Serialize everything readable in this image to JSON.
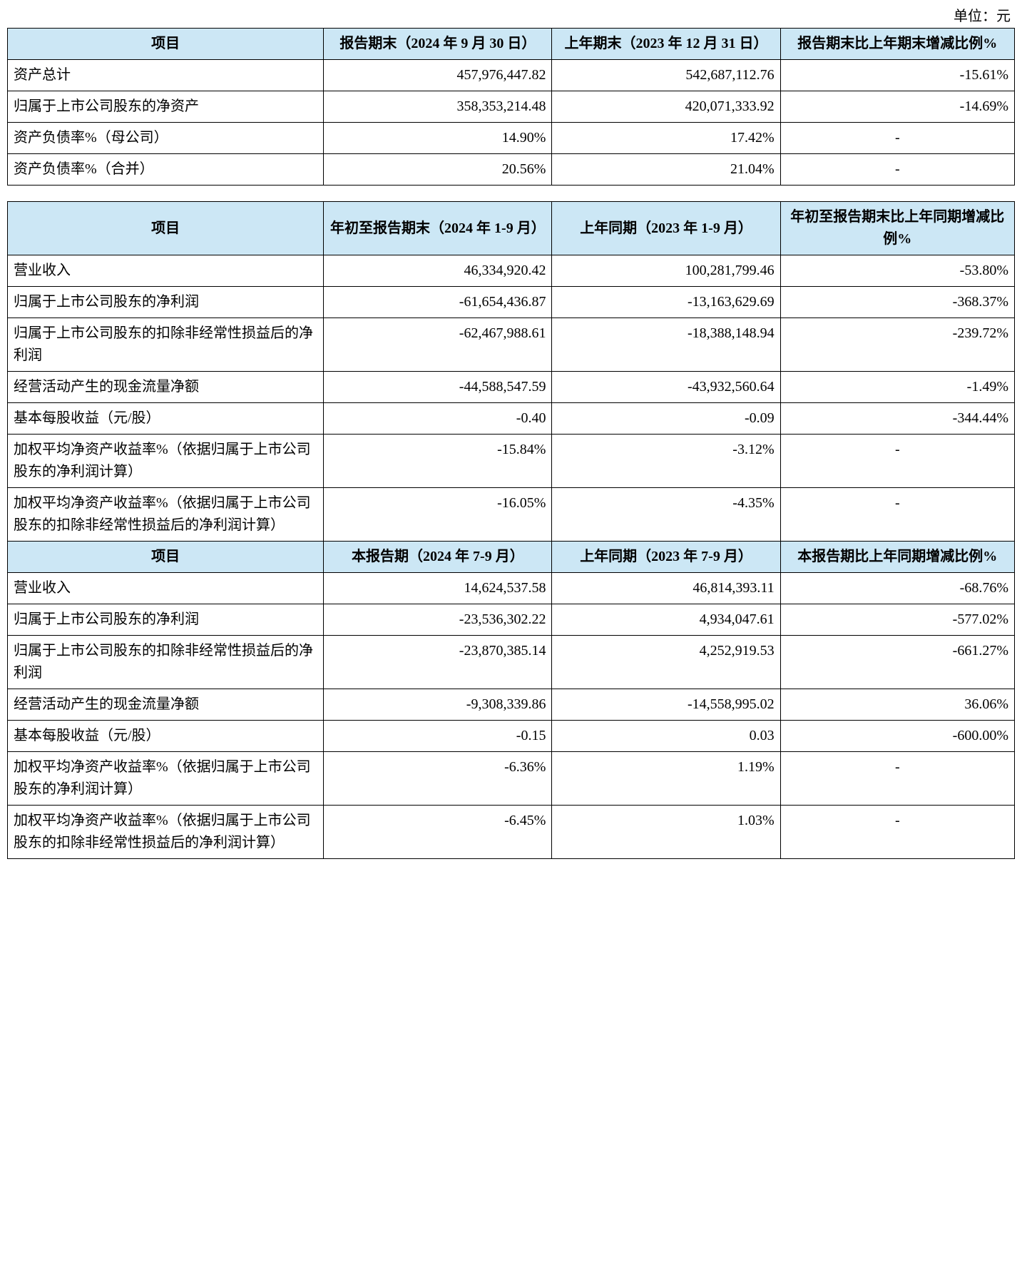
{
  "colors": {
    "header_bg": "#cce7f5",
    "border": "#000000",
    "text": "#000000",
    "page_bg": "#ffffff"
  },
  "font": {
    "family": "SimSun",
    "base_size_pt": 15
  },
  "unit_label": "单位：元",
  "table1": {
    "type": "table",
    "columns": [
      "项目",
      "报告期末（2024 年 9 月 30 日）",
      "上年期末（2023 年 12 月 31 日）",
      "报告期末比上年期末增减比例%"
    ],
    "rows": [
      {
        "label": "资产总计",
        "c1": "457,976,447.82",
        "c2": "542,687,112.76",
        "c3": "-15.61%"
      },
      {
        "label": "归属于上市公司股东的净资产",
        "c1": "358,353,214.48",
        "c2": "420,071,333.92",
        "c3": "-14.69%"
      },
      {
        "label": "资产负债率%（母公司）",
        "c1": "14.90%",
        "c2": "17.42%",
        "c3": "-"
      },
      {
        "label": "资产负债率%（合并）",
        "c1": "20.56%",
        "c2": "21.04%",
        "c3": "-"
      }
    ]
  },
  "table2": {
    "type": "table",
    "section_a": {
      "columns": [
        "项目",
        "年初至报告期末（2024 年 1-9 月）",
        "上年同期（2023 年 1-9 月）",
        "年初至报告期末比上年同期增减比例%"
      ],
      "rows": [
        {
          "label": "营业收入",
          "c1": "46,334,920.42",
          "c2": "100,281,799.46",
          "c3": "-53.80%"
        },
        {
          "label": "归属于上市公司股东的净利润",
          "c1": "-61,654,436.87",
          "c2": "-13,163,629.69",
          "c3": "-368.37%"
        },
        {
          "label": "归属于上市公司股东的扣除非经常性损益后的净利润",
          "c1": "-62,467,988.61",
          "c2": "-18,388,148.94",
          "c3": "-239.72%"
        },
        {
          "label": "经营活动产生的现金流量净额",
          "c1": "-44,588,547.59",
          "c2": "-43,932,560.64",
          "c3": "-1.49%"
        },
        {
          "label": "基本每股收益（元/股）",
          "c1": "-0.40",
          "c2": "-0.09",
          "c3": "-344.44%"
        },
        {
          "label": "加权平均净资产收益率%（依据归属于上市公司股东的净利润计算）",
          "c1": "-15.84%",
          "c2": "-3.12%",
          "c3": "-"
        },
        {
          "label": "加权平均净资产收益率%（依据归属于上市公司股东的扣除非经常性损益后的净利润计算）",
          "c1": "-16.05%",
          "c2": "-4.35%",
          "c3": "-"
        }
      ]
    },
    "section_b": {
      "columns": [
        "项目",
        "本报告期（2024 年 7-9 月）",
        "上年同期（2023 年 7-9 月）",
        "本报告期比上年同期增减比例%"
      ],
      "rows": [
        {
          "label": "营业收入",
          "c1": "14,624,537.58",
          "c2": "46,814,393.11",
          "c3": "-68.76%"
        },
        {
          "label": "归属于上市公司股东的净利润",
          "c1": "-23,536,302.22",
          "c2": "4,934,047.61",
          "c3": "-577.02%"
        },
        {
          "label": "归属于上市公司股东的扣除非经常性损益后的净利润",
          "c1": "-23,870,385.14",
          "c2": "4,252,919.53",
          "c3": "-661.27%"
        },
        {
          "label": "经营活动产生的现金流量净额",
          "c1": "-9,308,339.86",
          "c2": "-14,558,995.02",
          "c3": "36.06%"
        },
        {
          "label": "基本每股收益（元/股）",
          "c1": "-0.15",
          "c2": "0.03",
          "c3": "-600.00%"
        },
        {
          "label": "加权平均净资产收益率%（依据归属于上市公司股东的净利润计算）",
          "c1": "-6.36%",
          "c2": "1.19%",
          "c3": "-"
        },
        {
          "label": "加权平均净资产收益率%（依据归属于上市公司股东的扣除非经常性损益后的净利润计算）",
          "c1": "-6.45%",
          "c2": "1.03%",
          "c3": "-"
        }
      ]
    }
  }
}
